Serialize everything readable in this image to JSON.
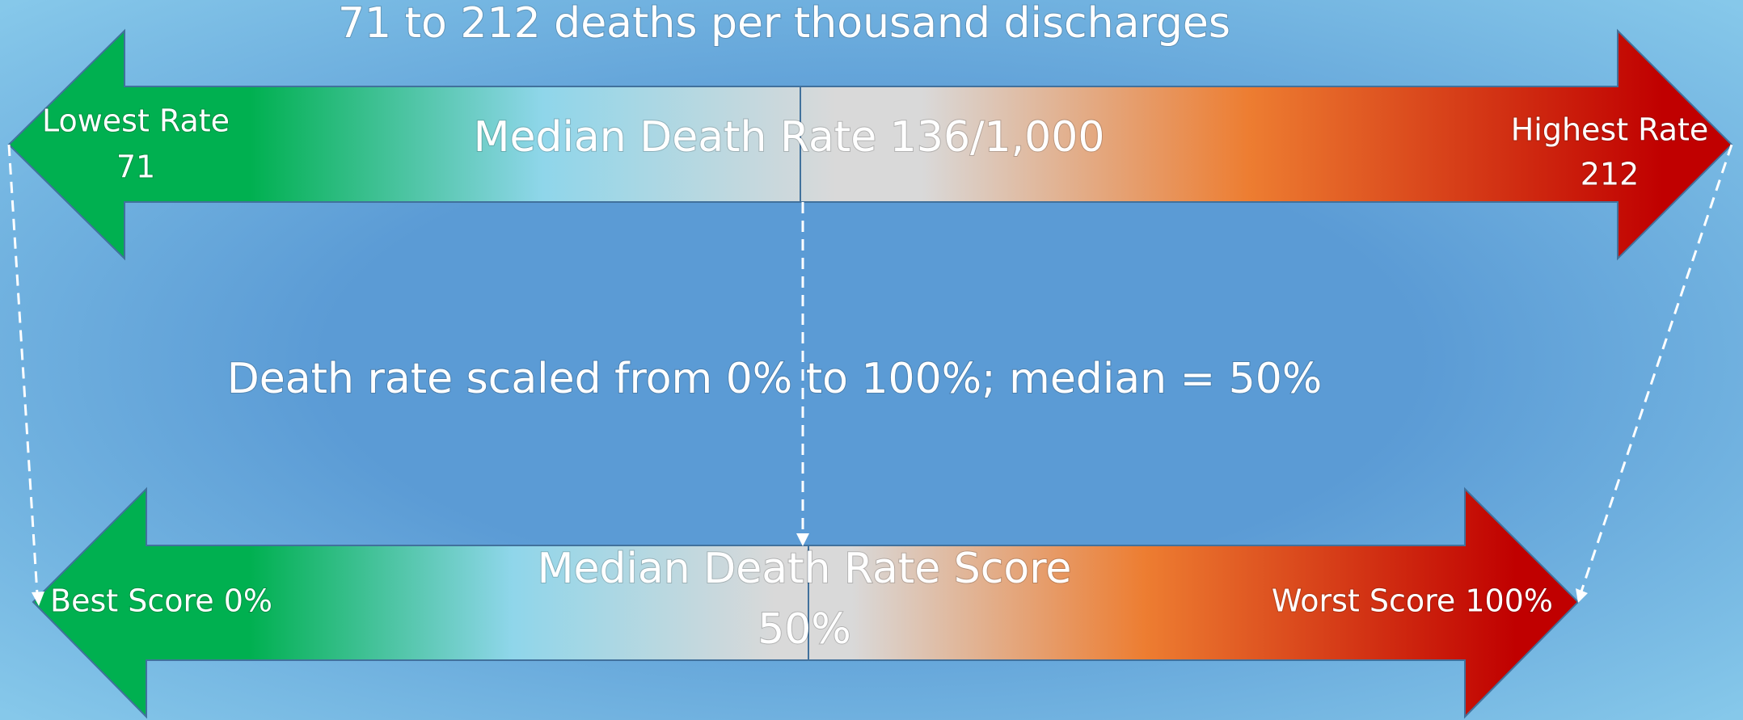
{
  "title": "71 to 212 deaths per thousand discharges",
  "top_arrow": {
    "median_label": "Median Death Rate 136/1,000",
    "low_label": "Lowest Rate",
    "low_value": "71",
    "high_label": "Highest Rate",
    "high_value": "212"
  },
  "middle_text": "Death rate scaled from 0% to 100%; median = 50%",
  "bottom_arrow": {
    "median_label": "Median Death Rate Score",
    "median_value": "50%",
    "best": "Best Score 0%",
    "worst": "Worst Score 100%"
  }
}
